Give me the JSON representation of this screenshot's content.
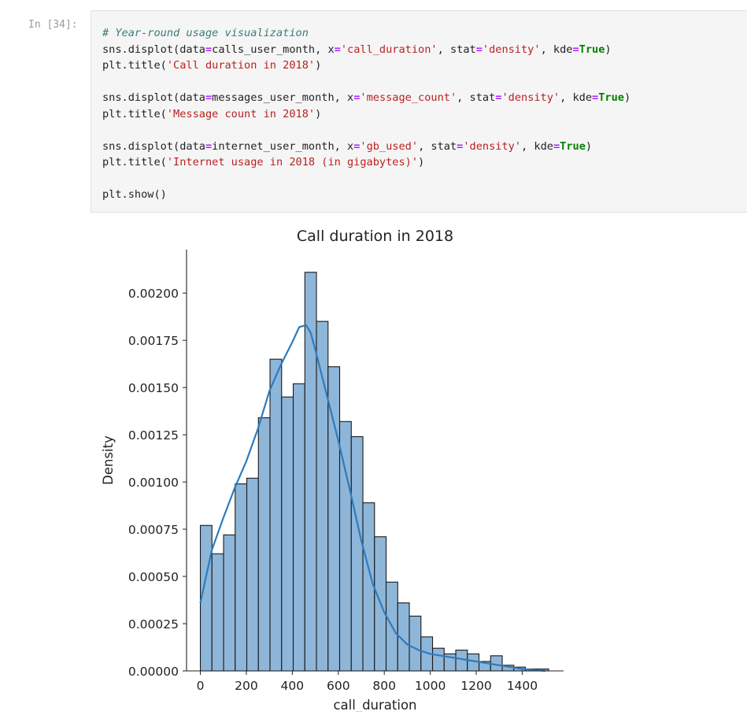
{
  "cell": {
    "prompt": "In [34]:",
    "code": {
      "comment": "# Year-round usage visualization",
      "l1": {
        "fn": "sns.displot(data",
        "eq1": "=",
        "df": "calls_user_month, x",
        "eq2": "=",
        "col": "'call_duration'",
        "sep": ", stat",
        "eq3": "=",
        "stat": "'density'",
        "sep2": ", kde",
        "eq4": "=",
        "kde": "True",
        "close": ")"
      },
      "l2": {
        "fn": "plt.title(",
        "str": "'Call duration in 2018'",
        "close": ")"
      },
      "l3": {
        "fn": "sns.displot(data",
        "eq1": "=",
        "df": "messages_user_month, x",
        "eq2": "=",
        "col": "'message_count'",
        "sep": ", stat",
        "eq3": "=",
        "stat": "'density'",
        "sep2": ", kde",
        "eq4": "=",
        "kde": "True",
        "close": ")"
      },
      "l4": {
        "fn": "plt.title(",
        "str": "'Message count in 2018'",
        "close": ")"
      },
      "l5": {
        "fn": "sns.displot(data",
        "eq1": "=",
        "df": "internet_user_month, x",
        "eq2": "=",
        "col": "'gb_used'",
        "sep": ", stat",
        "eq3": "=",
        "stat": "'density'",
        "sep2": ", kde",
        "eq4": "=",
        "kde": "True",
        "close": ")"
      },
      "l6": {
        "fn": "plt.title(",
        "str": "'Internet usage in 2018 (in gigabytes)'",
        "close": ")"
      },
      "l7": {
        "fn": "plt.show()"
      }
    }
  },
  "chart_data": {
    "type": "bar",
    "title": "Call duration in 2018",
    "xlabel": "call_duration",
    "ylabel": "Density",
    "xlim": [
      -60,
      1580
    ],
    "ylim": [
      0,
      0.00223
    ],
    "xticks": [
      0,
      200,
      400,
      600,
      800,
      1000,
      1200,
      1400
    ],
    "xtick_labels": [
      "0",
      "200",
      "400",
      "600",
      "800",
      "1000",
      "1200",
      "1400"
    ],
    "yticks": [
      0,
      0.00025,
      0.0005,
      0.00075,
      0.001,
      0.00125,
      0.0015,
      0.00175,
      0.002
    ],
    "ytick_labels": [
      "0.00000",
      "0.00025",
      "0.00050",
      "0.00075",
      "0.00100",
      "0.00125",
      "0.00150",
      "0.00175",
      "0.00200"
    ],
    "bin_width": 50.5,
    "bin_start": 0,
    "values": [
      0.00077,
      0.00062,
      0.00072,
      0.00099,
      0.00102,
      0.00134,
      0.00165,
      0.00145,
      0.00152,
      0.00211,
      0.00185,
      0.00161,
      0.00132,
      0.00124,
      0.00089,
      0.00071,
      0.00047,
      0.00036,
      0.00029,
      0.00018,
      0.00012,
      9e-05,
      0.00011,
      9e-05,
      5e-05,
      8e-05,
      3e-05,
      2e-05,
      1e-05,
      1e-05
    ],
    "kde": {
      "x": [
        0,
        50,
        100,
        150,
        200,
        250,
        300,
        350,
        400,
        430,
        460,
        480,
        500,
        550,
        600,
        650,
        700,
        750,
        800,
        850,
        900,
        950,
        1000,
        1050,
        1100,
        1150,
        1200,
        1250,
        1300,
        1350,
        1400,
        1450,
        1500
      ],
      "y": [
        0.00036,
        0.00064,
        0.00081,
        0.00097,
        0.00111,
        0.00128,
        0.00148,
        0.00162,
        0.00174,
        0.00182,
        0.00183,
        0.00179,
        0.0017,
        0.00146,
        0.00122,
        0.00096,
        0.00069,
        0.00046,
        0.00031,
        0.0002,
        0.00014,
        0.00011,
        9e-05,
        8e-05,
        7e-05,
        6e-05,
        5e-05,
        4e-05,
        3e-05,
        2e-05,
        1e-05,
        5e-06,
        0.0
      ],
      "color": "#2f7bbd"
    },
    "bar_color": "#8eb6d9",
    "edge_color": "#1a1a1a"
  }
}
